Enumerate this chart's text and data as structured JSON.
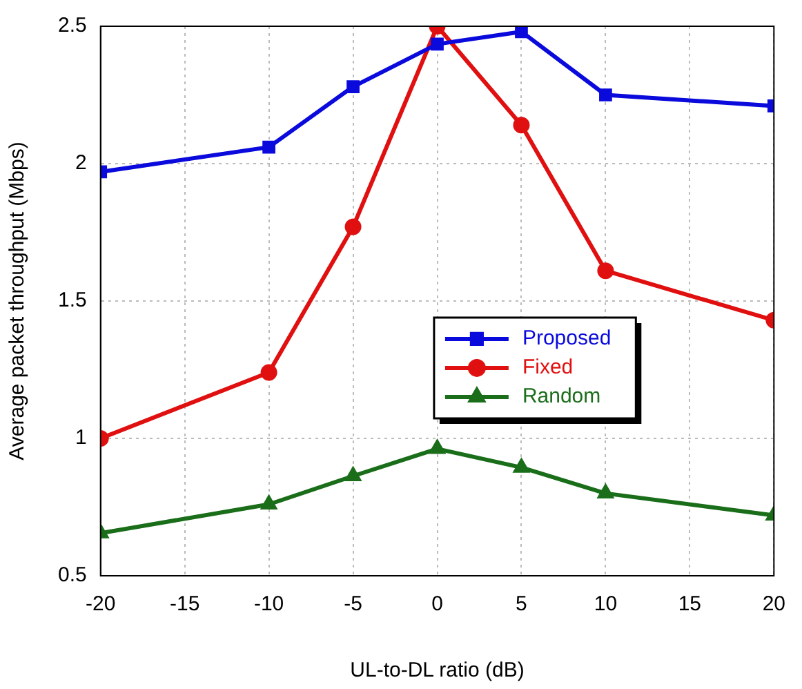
{
  "chart_data": {
    "type": "line",
    "xlabel": "UL-to-DL ratio (dB)",
    "ylabel": "Average packet throughput (Mbps)",
    "x": [
      -20,
      -10,
      -5,
      0,
      5,
      10,
      20
    ],
    "series": [
      {
        "name": "Proposed",
        "color": "#0a0adc",
        "marker": "square",
        "values": [
          1.97,
          2.06,
          2.28,
          2.435,
          2.48,
          2.25,
          2.21
        ]
      },
      {
        "name": "Fixed",
        "color": "#e01010",
        "marker": "circle",
        "values": [
          1.0,
          1.24,
          1.77,
          2.5,
          2.14,
          1.61,
          1.43
        ]
      },
      {
        "name": "Random",
        "color": "#1a6e1a",
        "marker": "triangle",
        "values": [
          0.655,
          0.76,
          0.863,
          0.962,
          0.894,
          0.8,
          0.72
        ]
      }
    ],
    "xlim": [
      -20,
      20
    ],
    "xticks": [
      -20,
      -15,
      -10,
      -5,
      0,
      5,
      10,
      15,
      20
    ],
    "ylim": [
      0.5,
      2.5
    ],
    "yticks": [
      0.5,
      1,
      1.5,
      2,
      2.5
    ],
    "grid": true,
    "legend": "center right",
    "line_style": "solid"
  }
}
